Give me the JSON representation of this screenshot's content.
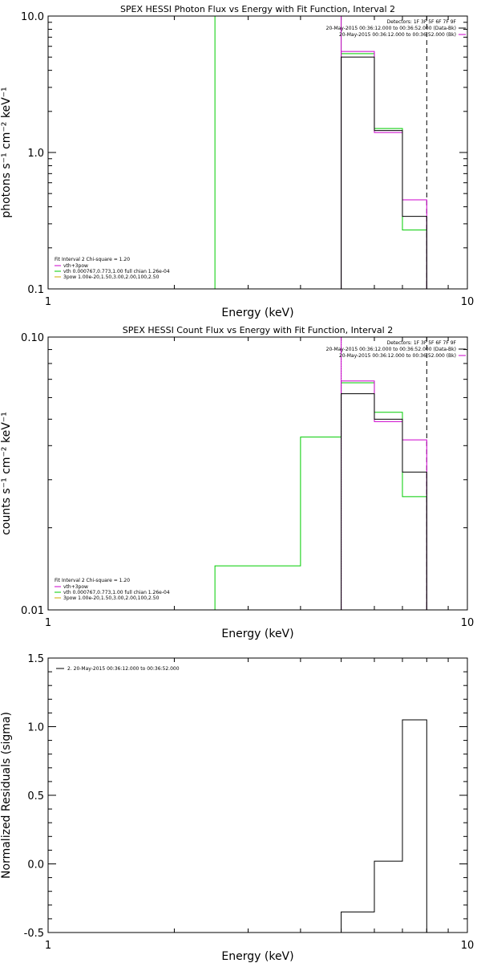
{
  "chart_data": [
    {
      "type": "line",
      "title": "SPEX HESSI Photon Flux vs Energy with Fit Function, Interval 2",
      "xlabel": "Energy (keV)",
      "ylabel": "photons s⁻¹ cm⁻² keV⁻¹",
      "x_scale": "log",
      "y_scale": "log",
      "xlim": [
        1,
        10
      ],
      "ylim": [
        0.1,
        10
      ],
      "x_ticks": [
        {
          "v": 1,
          "label": "1"
        },
        {
          "v": 10,
          "label": "10"
        }
      ],
      "y_ticks": [
        {
          "v": 0.1,
          "label": "0.1"
        },
        {
          "v": 1,
          "label": "1.0"
        },
        {
          "v": 10,
          "label": "10.0"
        }
      ],
      "legend_tr": {
        "header": "Detectors: 1F 3F 5F 6F 7F 9F",
        "lines": [
          {
            "text": "20-May-2015 00:36:12.000 to 00:36:52.000 (Data-Bk)",
            "color": "#000000"
          },
          {
            "text": "20-May-2015 00:36:12.000 to 00:36:52.000 (Bk)",
            "color": "#cc00cc"
          }
        ]
      },
      "legend_bl": {
        "header": "Fit Interval 2   Chi-square = 1.20",
        "lines": [
          {
            "text": "vth+3pow",
            "color": "#cc00cc"
          },
          {
            "text": "vth 0.000767,0.773,1.00  full chian 1.26e-04",
            "color": "#00cc00"
          },
          {
            "text": "3pow 1.00e-20,1.50,3.00,2.00,100,2.50",
            "color": "#ccaa00"
          }
        ]
      },
      "vlines": [
        {
          "x": 2.5,
          "color": "#00cc00",
          "style": "solid"
        },
        {
          "x": 5.0,
          "color": "#00cc00",
          "style": "solid"
        },
        {
          "x": 5.0,
          "color": "#cc00cc",
          "style": "solid"
        },
        {
          "x": 8.0,
          "color": "#000000",
          "style": "dashed"
        }
      ],
      "series": [
        {
          "color": "#00cc00",
          "edges": [
            5,
            6,
            7,
            8
          ],
          "values": [
            5.3,
            1.5,
            0.27
          ]
        },
        {
          "color": "#cc00cc",
          "edges": [
            5,
            6,
            7,
            8
          ],
          "values": [
            5.5,
            1.4,
            0.45
          ]
        },
        {
          "color": "#000000",
          "edges": [
            5,
            6,
            7,
            8
          ],
          "values": [
            5.0,
            1.45,
            0.34
          ]
        }
      ]
    },
    {
      "type": "line",
      "title": "SPEX HESSI Count Flux vs Energy with Fit Function, Interval 2",
      "xlabel": "Energy (keV)",
      "ylabel": "counts s⁻¹ cm⁻² keV⁻¹",
      "x_scale": "log",
      "y_scale": "log",
      "xlim": [
        1,
        10
      ],
      "ylim": [
        0.01,
        0.1
      ],
      "x_ticks": [
        {
          "v": 1,
          "label": "1"
        },
        {
          "v": 10,
          "label": "10"
        }
      ],
      "y_ticks": [
        {
          "v": 0.01,
          "label": "0.01"
        },
        {
          "v": 0.1,
          "label": "0.10"
        }
      ],
      "legend_tr": {
        "header": "Detectors: 1F 3F 5F 6F 7F 9F",
        "lines": [
          {
            "text": "20-May-2015 00:36:12.000 to 00:36:52.000 (Data-Bk)",
            "color": "#000000"
          },
          {
            "text": "20-May-2015 00:36:12.000 to 00:36:52.000 (Bk)",
            "color": "#cc00cc"
          }
        ]
      },
      "legend_bl": {
        "header": "Fit Interval 2   Chi-square = 1.20",
        "lines": [
          {
            "text": "vth+3pow",
            "color": "#cc00cc"
          },
          {
            "text": "vth 0.000767,0.773,1.00  full chian 1.26e-04",
            "color": "#00cc00"
          },
          {
            "text": "3pow 1.00e-20,1.50,3.00,2.00,100,2.50",
            "color": "#ccaa00"
          }
        ]
      },
      "vlines": [
        {
          "x": 5.0,
          "color": "#000000",
          "style": "dotted"
        },
        {
          "x": 5.0,
          "color": "#cc00cc",
          "style": "solid"
        },
        {
          "x": 8.0,
          "color": "#000000",
          "style": "dashed"
        }
      ],
      "series": [
        {
          "color": "#00cc00",
          "edges": [
            2.5,
            3,
            4,
            5,
            6,
            7,
            8
          ],
          "values": [
            0.0145,
            0.0145,
            0.043,
            0.068,
            0.053,
            0.026
          ]
        },
        {
          "color": "#cc00cc",
          "edges": [
            5,
            6,
            7,
            8
          ],
          "values": [
            0.069,
            0.049,
            0.042
          ]
        },
        {
          "color": "#000000",
          "edges": [
            5,
            6,
            7,
            8
          ],
          "values": [
            0.062,
            0.05,
            0.032
          ]
        }
      ]
    },
    {
      "type": "line",
      "title": "",
      "xlabel": "Energy (keV)",
      "ylabel": "Normalized Residuals (sigma)",
      "x_scale": "log",
      "y_scale": "linear",
      "xlim": [
        1,
        10
      ],
      "ylim": [
        -0.5,
        1.5
      ],
      "x_ticks": [
        {
          "v": 1,
          "label": "1"
        },
        {
          "v": 10,
          "label": "10"
        }
      ],
      "y_ticks": [
        {
          "v": -0.5,
          "label": "-0.5"
        },
        {
          "v": 0,
          "label": "0.0"
        },
        {
          "v": 0.5,
          "label": "0.5"
        },
        {
          "v": 1,
          "label": "1.0"
        },
        {
          "v": 1.5,
          "label": "1.5"
        }
      ],
      "legend_tl": {
        "lines": [
          {
            "text": "2. 20-May-2015 00:36:12.000 to 00:36:52.000",
            "color": "#000000"
          }
        ]
      },
      "vlines": [],
      "series": [
        {
          "color": "#000000",
          "edges": [
            5,
            6,
            7,
            8
          ],
          "values": [
            -0.35,
            0.02,
            1.05
          ]
        }
      ]
    }
  ]
}
